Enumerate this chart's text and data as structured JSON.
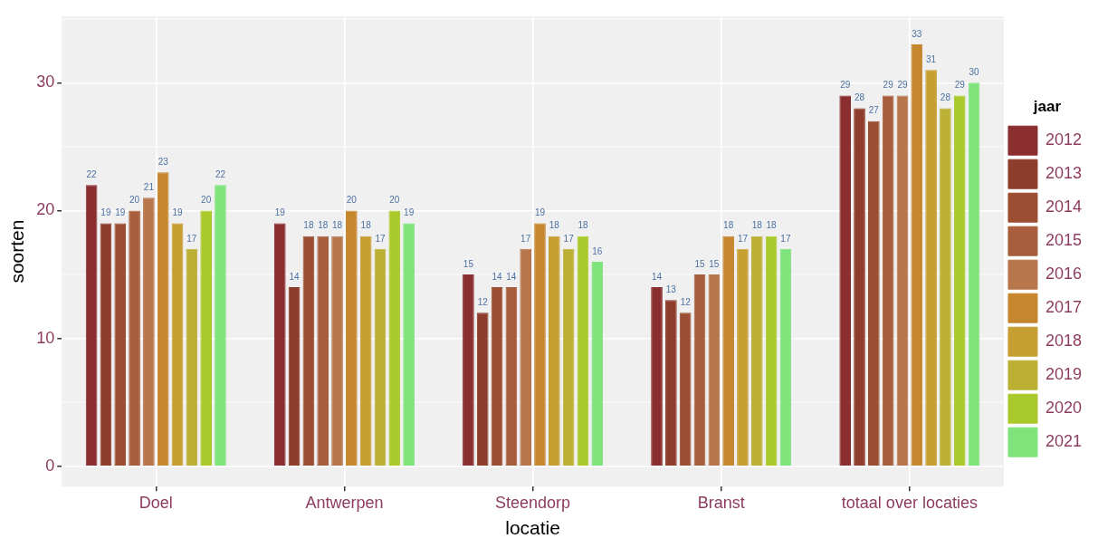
{
  "chart_data": {
    "type": "bar",
    "xlabel": "locatie",
    "ylabel": "soorten",
    "legend_title": "jaar",
    "legend": "right",
    "grid": true,
    "data_labels": true,
    "categories": [
      "Doel",
      "Antwerpen",
      "Steendorp",
      "Branst",
      "totaal over locaties"
    ],
    "ylim": [
      -1.6,
      35.2
    ],
    "yticks": [
      0,
      10,
      20,
      30
    ],
    "series": [
      {
        "name": "2012",
        "color": "#8b2e30",
        "values": [
          22,
          19,
          15,
          14,
          29
        ]
      },
      {
        "name": "2013",
        "color": "#8e3d2d",
        "values": [
          19,
          14,
          12,
          13,
          28
        ]
      },
      {
        "name": "2014",
        "color": "#9b4e31",
        "values": [
          19,
          18,
          14,
          12,
          27
        ]
      },
      {
        "name": "2015",
        "color": "#a85e3c",
        "values": [
          20,
          18,
          14,
          15,
          29
        ]
      },
      {
        "name": "2016",
        "color": "#b8764c",
        "values": [
          21,
          18,
          17,
          15,
          29
        ]
      },
      {
        "name": "2017",
        "color": "#c6862e",
        "values": [
          23,
          20,
          19,
          18,
          33
        ]
      },
      {
        "name": "2018",
        "color": "#c79e32",
        "values": [
          19,
          18,
          18,
          17,
          31
        ]
      },
      {
        "name": "2019",
        "color": "#bbb034",
        "values": [
          17,
          17,
          17,
          18,
          28
        ]
      },
      {
        "name": "2020",
        "color": "#aac92a",
        "values": [
          20,
          20,
          18,
          18,
          29
        ]
      },
      {
        "name": "2021",
        "color": "#7de37a",
        "values": [
          22,
          19,
          16,
          17,
          30
        ]
      }
    ]
  }
}
